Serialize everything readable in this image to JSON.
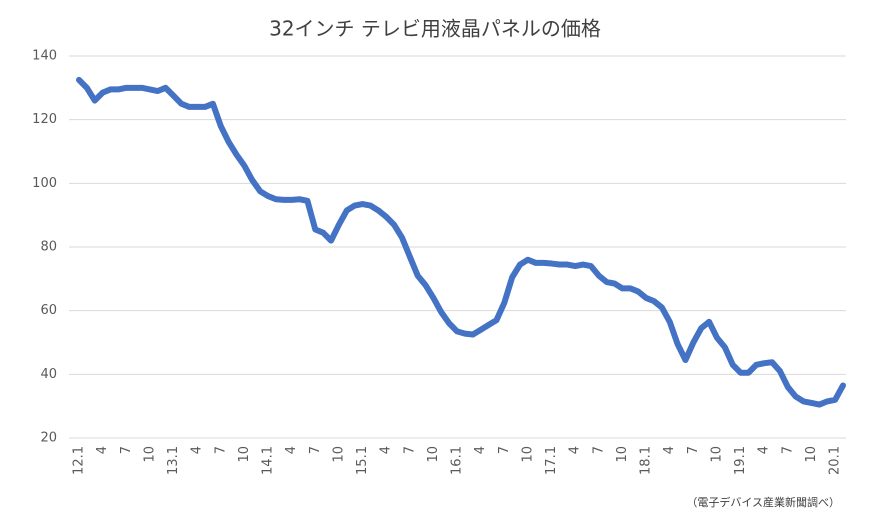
{
  "chart_data": {
    "type": "line",
    "title": "32インチ テレビ用液晶パネルの価格",
    "source": "（電子デバイス産業新聞調べ）",
    "categories": [
      "12.1",
      null,
      null,
      "4",
      null,
      null,
      "7",
      null,
      null,
      "10",
      null,
      null,
      "13.1",
      null,
      null,
      "4",
      null,
      null,
      "7",
      null,
      null,
      "10",
      null,
      null,
      "14.1",
      null,
      null,
      "4",
      null,
      null,
      "7",
      null,
      null,
      "10",
      null,
      null,
      "15.1",
      null,
      null,
      "4",
      null,
      null,
      "7",
      null,
      null,
      "10",
      null,
      null,
      "16.1",
      null,
      null,
      "4",
      null,
      null,
      "7",
      null,
      null,
      "10",
      null,
      null,
      "17.1",
      null,
      null,
      "4",
      null,
      null,
      "7",
      null,
      null,
      "10",
      null,
      null,
      "18.1",
      null,
      null,
      "4",
      null,
      null,
      "7",
      null,
      null,
      "10",
      null,
      null,
      "19.1",
      null,
      null,
      "4",
      null,
      null,
      "7",
      null,
      null,
      "10",
      null,
      null,
      "20.1",
      null
    ],
    "values": [
      132.5,
      130,
      126,
      128.5,
      129.5,
      129.5,
      130,
      130,
      130,
      129.5,
      129,
      130,
      127.5,
      125,
      124,
      124,
      124,
      125,
      118,
      113,
      109,
      105.5,
      101,
      97.5,
      96,
      95,
      94.8,
      94.8,
      95,
      94.5,
      85.5,
      84.5,
      82,
      87,
      91.5,
      93,
      93.5,
      93,
      91.5,
      89.5,
      87,
      83,
      77,
      71,
      68,
      64,
      59.5,
      56,
      53.5,
      52.8,
      52.5,
      54,
      55.5,
      57,
      62.5,
      70.5,
      74.5,
      76,
      75,
      75,
      74.8,
      74.5,
      74.5,
      74,
      74.5,
      74,
      71,
      69,
      68.5,
      67,
      67,
      66,
      64,
      63,
      61,
      56.5,
      49.5,
      44.5,
      50,
      54.5,
      56.5,
      51.5,
      48.5,
      43,
      40.5,
      40.5,
      43,
      43.5,
      43.8,
      41,
      36,
      33,
      31.5,
      31,
      30.5,
      31.5,
      32,
      36.5
    ],
    "color": "#4472c4",
    "ylim": [
      20,
      140
    ],
    "yticks": [
      20,
      40,
      60,
      80,
      100,
      120,
      140
    ],
    "grid": true
  }
}
